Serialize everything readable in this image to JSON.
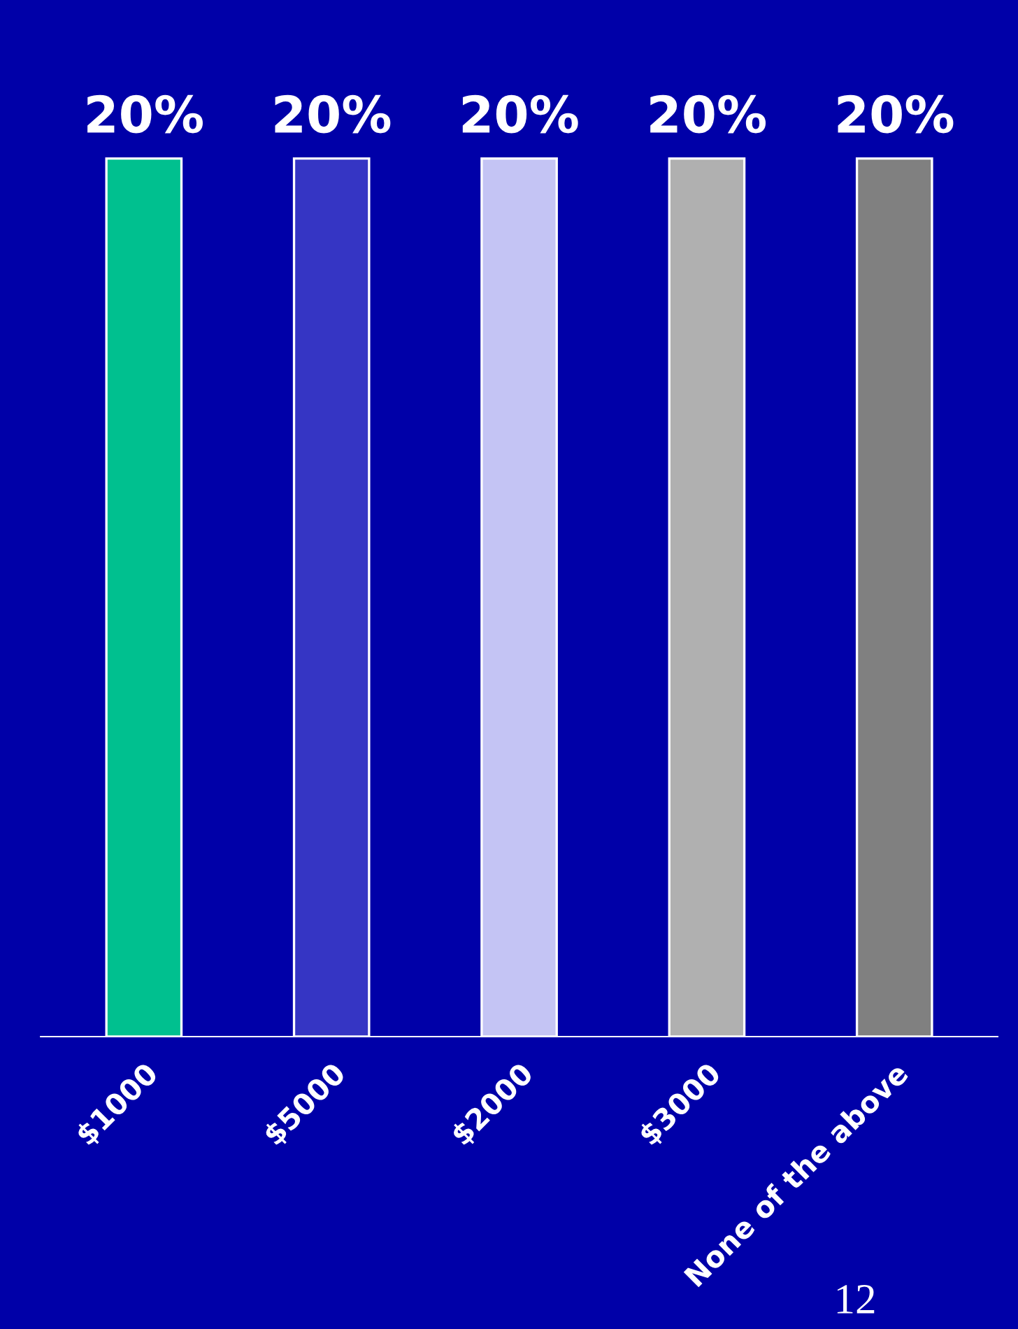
{
  "chart_data": {
    "type": "bar",
    "categories": [
      "$1000",
      "$5000",
      "$2000",
      "$3000",
      "None of the above"
    ],
    "values": [
      20,
      20,
      20,
      20,
      20
    ],
    "colors": [
      "#00c08f",
      "#3535c4",
      "#c4c4f4",
      "#b0b0b0",
      "#808080"
    ],
    "value_labels": [
      "20%",
      "20%",
      "20%",
      "20%",
      "20%"
    ],
    "annotations": [
      "12"
    ],
    "grid": false,
    "legend": false
  }
}
